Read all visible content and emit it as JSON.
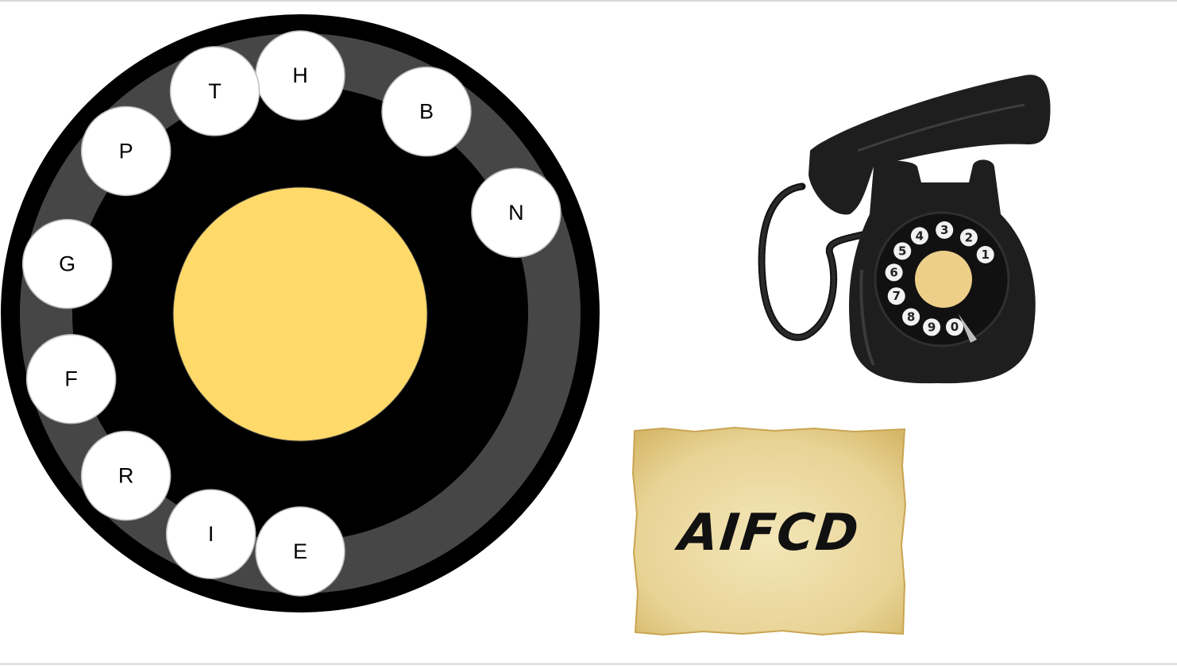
{
  "dial": {
    "letters": [
      "H",
      "B",
      "N",
      "E",
      "I",
      "R",
      "F",
      "G",
      "P",
      "T"
    ],
    "colors": {
      "body": "#000000",
      "track": "#464646",
      "center": "#FFD96A",
      "key": "#FFFFFF"
    }
  },
  "phone": {
    "icon": "rotary-telephone-icon",
    "digits": [
      "1",
      "2",
      "3",
      "4",
      "5",
      "6",
      "7",
      "8",
      "9",
      "0"
    ],
    "colors": {
      "body": "#1e1e1e",
      "center": "#EDCF8A"
    }
  },
  "note": {
    "text": "AIFCD",
    "colors": {
      "paper": "#EBD9A0"
    }
  }
}
